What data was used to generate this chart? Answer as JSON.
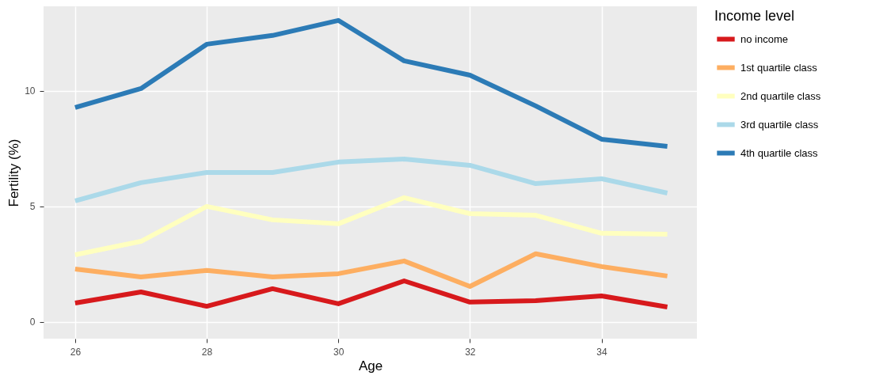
{
  "chart_data": {
    "type": "line",
    "xlabel": "Age",
    "ylabel": "Fertility (%)",
    "legend_title": "Income level",
    "x": [
      26,
      27,
      28,
      29,
      30,
      31,
      32,
      33,
      34,
      35
    ],
    "series": [
      {
        "name": "no income",
        "color": "#d7191c",
        "values": [
          0.82,
          1.3,
          0.68,
          1.44,
          0.79,
          1.78,
          0.86,
          0.92,
          1.13,
          0.65
        ]
      },
      {
        "name": "1st quartile class",
        "color": "#fdae61",
        "values": [
          2.29,
          1.95,
          2.23,
          1.95,
          2.09,
          2.64,
          1.54,
          2.95,
          2.4,
          1.99
        ]
      },
      {
        "name": "2nd quartile class",
        "color": "#ffffbf",
        "values": [
          2.91,
          3.49,
          5.0,
          4.42,
          4.25,
          5.38,
          4.69,
          4.62,
          3.84,
          3.8
        ]
      },
      {
        "name": "3rd quartile class",
        "color": "#abd9e9",
        "values": [
          5.24,
          6.03,
          6.47,
          6.47,
          6.92,
          7.05,
          6.78,
          5.99,
          6.2,
          5.58
        ]
      },
      {
        "name": "4th quartile class",
        "color": "#2c7bb6",
        "values": [
          9.28,
          10.1,
          12.02,
          12.4,
          13.05,
          11.3,
          10.68,
          9.35,
          7.91,
          7.6
        ]
      }
    ],
    "xlim": [
      25.52,
      35.45
    ],
    "xticks": [
      26,
      28,
      30,
      32,
      34
    ],
    "ylim": [
      -0.72,
      13.66
    ],
    "yticks": [
      0,
      5,
      10
    ],
    "grid": true,
    "legend": "right",
    "marker": "none",
    "line_style": "solid"
  }
}
